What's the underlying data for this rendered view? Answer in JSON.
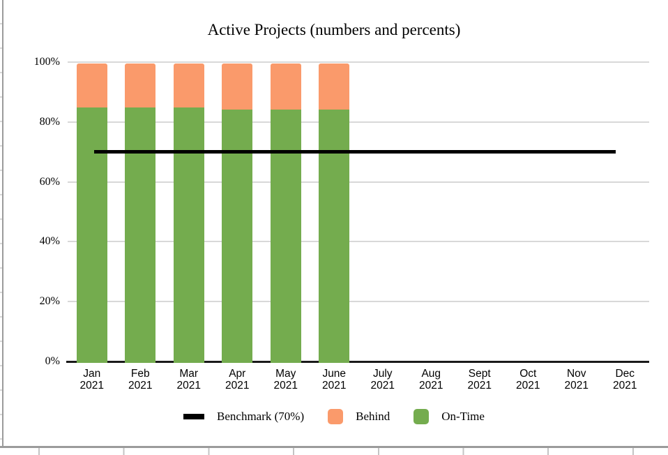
{
  "chart_data": {
    "type": "bar",
    "stacked": true,
    "title": "Active Projects (numbers and percents)",
    "categories": [
      {
        "month": "Jan",
        "year": "2021"
      },
      {
        "month": "Feb",
        "year": "2021"
      },
      {
        "month": "Mar",
        "year": "2021"
      },
      {
        "month": "Apr",
        "year": "2021"
      },
      {
        "month": "May",
        "year": "2021"
      },
      {
        "month": "June",
        "year": "2021"
      },
      {
        "month": "July",
        "year": "2021"
      },
      {
        "month": "Aug",
        "year": "2021"
      },
      {
        "month": "Sept",
        "year": "2021"
      },
      {
        "month": "Oct",
        "year": "2021"
      },
      {
        "month": "Nov",
        "year": "2021"
      },
      {
        "month": "Dec",
        "year": "2021"
      }
    ],
    "series": [
      {
        "name": "On-Time",
        "color": "#74AC4E",
        "values": [
          85.3,
          85.3,
          85.3,
          84.7,
          84.7,
          84.7,
          null,
          null,
          null,
          null,
          null,
          null
        ]
      },
      {
        "name": "Behind",
        "color": "#FA9A6B",
        "values": [
          14.7,
          14.7,
          14.7,
          15.3,
          15.3,
          15.3,
          null,
          null,
          null,
          null,
          null,
          null
        ]
      }
    ],
    "benchmark": {
      "label": "Benchmark (70%)",
      "value": 70,
      "color": "#000000"
    },
    "y_axis": {
      "min": 0,
      "max": 100,
      "ticks": [
        {
          "value": 0,
          "label": "0%"
        },
        {
          "value": 20,
          "label": "20%"
        },
        {
          "value": 40,
          "label": "40%"
        },
        {
          "value": 60,
          "label": "60%"
        },
        {
          "value": 80,
          "label": "80%"
        },
        {
          "value": 100,
          "label": "100%"
        }
      ]
    },
    "legend": [
      {
        "label": "Benchmark (70%)",
        "color": "#000000",
        "swatch": "line"
      },
      {
        "label": "Behind",
        "color": "#FA9A6B",
        "swatch": "square"
      },
      {
        "label": "On-Time",
        "color": "#74AC4E",
        "swatch": "square"
      }
    ],
    "gridline_color": "#D8D8D8",
    "axis_color": "#1A1A1A",
    "legend_position": "bottom",
    "grid": true
  }
}
